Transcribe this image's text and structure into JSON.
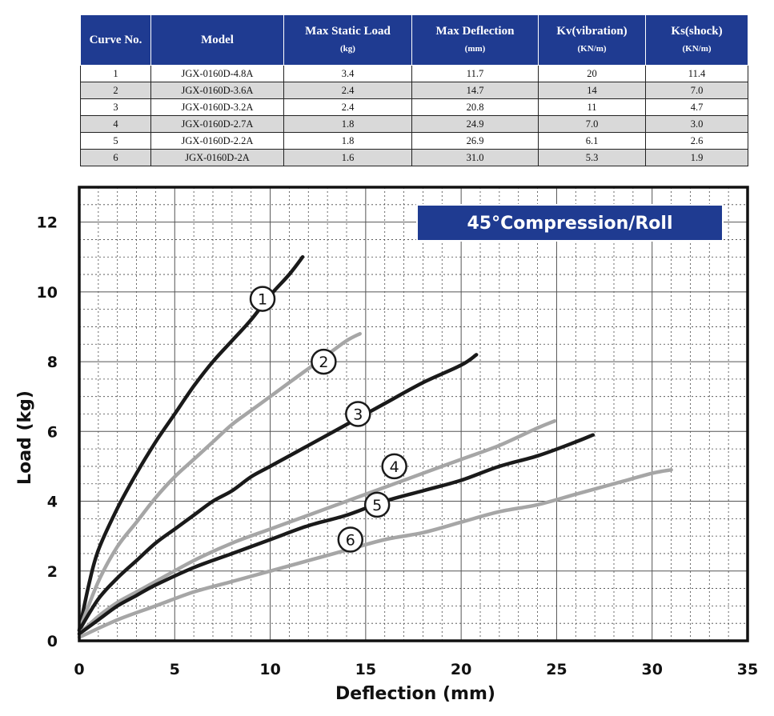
{
  "table": {
    "headers": [
      {
        "label": "Curve No.",
        "unit": ""
      },
      {
        "label": "Model",
        "unit": ""
      },
      {
        "label": "Max Static Load",
        "unit": "(kg)"
      },
      {
        "label": "Max Deflection",
        "unit": "(mm)"
      },
      {
        "label": "Kv(vibration)",
        "unit": "(KN/m)"
      },
      {
        "label": "Ks(shock)",
        "unit": "(KN/m)"
      }
    ],
    "rows": [
      [
        "1",
        "JGX-0160D-4.8A",
        "3.4",
        "11.7",
        "20",
        "11.4"
      ],
      [
        "2",
        "JGX-0160D-3.6A",
        "2.4",
        "14.7",
        "14",
        "7.0"
      ],
      [
        "3",
        "JGX-0160D-3.2A",
        "2.4",
        "20.8",
        "11",
        "4.7"
      ],
      [
        "4",
        "JGX-0160D-2.7A",
        "1.8",
        "24.9",
        "7.0",
        "3.0"
      ],
      [
        "5",
        "JGX-0160D-2.2A",
        "1.8",
        "26.9",
        "6.1",
        "2.6"
      ],
      [
        "6",
        "JGX-0160D-2A",
        "1.6",
        "31.0",
        "5.3",
        "1.9"
      ]
    ]
  },
  "chart_data": {
    "type": "line",
    "title": "45°Compression/Roll",
    "xlabel": "Deflection (mm)",
    "ylabel": "Load (kg)",
    "xlim": [
      0,
      35
    ],
    "ylim": [
      0,
      13
    ],
    "xticks": [
      0,
      5,
      10,
      15,
      20,
      25,
      30,
      35
    ],
    "yticks": [
      0,
      2,
      4,
      6,
      8,
      10,
      12
    ],
    "grid": "dashed minor grid with solid major lines",
    "series": [
      {
        "name": "1",
        "color": "#1a1a1a",
        "x": [
          0,
          0.5,
          1,
          2,
          3,
          4,
          5,
          6,
          7,
          8,
          9,
          10,
          11,
          11.7
        ],
        "y": [
          0.3,
          1.6,
          2.6,
          3.8,
          4.8,
          5.7,
          6.5,
          7.3,
          8.0,
          8.6,
          9.2,
          9.9,
          10.5,
          11.0
        ]
      },
      {
        "name": "2",
        "color": "#a6a6a6",
        "x": [
          0,
          1,
          2,
          3,
          4,
          5,
          6,
          7,
          8,
          9,
          10,
          11,
          12,
          13,
          14,
          14.7
        ],
        "y": [
          0.3,
          1.7,
          2.7,
          3.4,
          4.1,
          4.7,
          5.2,
          5.7,
          6.2,
          6.6,
          7.0,
          7.4,
          7.8,
          8.2,
          8.6,
          8.8
        ]
      },
      {
        "name": "3",
        "color": "#1a1a1a",
        "x": [
          0,
          1,
          2,
          3,
          4,
          5,
          6,
          7,
          8,
          9,
          10,
          12,
          14,
          16,
          18,
          20,
          20.8
        ],
        "y": [
          0.3,
          1.2,
          1.8,
          2.3,
          2.8,
          3.2,
          3.6,
          4.0,
          4.3,
          4.7,
          5.0,
          5.6,
          6.2,
          6.8,
          7.4,
          7.9,
          8.2
        ]
      },
      {
        "name": "4",
        "color": "#a6a6a6",
        "x": [
          0,
          1,
          2,
          3,
          4,
          6,
          8,
          10,
          12,
          14,
          16,
          18,
          20,
          22,
          24,
          24.9
        ],
        "y": [
          0.2,
          0.7,
          1.1,
          1.4,
          1.7,
          2.3,
          2.8,
          3.2,
          3.6,
          4.0,
          4.4,
          4.8,
          5.2,
          5.6,
          6.1,
          6.3
        ]
      },
      {
        "name": "5",
        "color": "#1a1a1a",
        "x": [
          0,
          1,
          2,
          3,
          4,
          6,
          8,
          10,
          12,
          14,
          16,
          18,
          20,
          22,
          24,
          26,
          26.9
        ],
        "y": [
          0.2,
          0.6,
          1.0,
          1.3,
          1.6,
          2.1,
          2.5,
          2.9,
          3.3,
          3.6,
          4.0,
          4.3,
          4.6,
          5.0,
          5.3,
          5.7,
          5.9
        ]
      },
      {
        "name": "6",
        "color": "#a6a6a6",
        "x": [
          0,
          2,
          4,
          6,
          8,
          10,
          12,
          14,
          16,
          18,
          20,
          22,
          24,
          26,
          28,
          30,
          31
        ],
        "y": [
          0.1,
          0.6,
          1.0,
          1.4,
          1.7,
          2.0,
          2.3,
          2.6,
          2.9,
          3.1,
          3.4,
          3.7,
          3.9,
          4.2,
          4.5,
          4.8,
          4.9
        ]
      }
    ],
    "curve_labels": [
      {
        "text": "1",
        "x": 9.6,
        "y": 9.8
      },
      {
        "text": "2",
        "x": 12.8,
        "y": 8.0
      },
      {
        "text": "3",
        "x": 14.6,
        "y": 6.5
      },
      {
        "text": "4",
        "x": 16.5,
        "y": 5.0
      },
      {
        "text": "5",
        "x": 15.6,
        "y": 3.9
      },
      {
        "text": "6",
        "x": 14.2,
        "y": 2.9
      }
    ],
    "title_box_color": "#1f3b91"
  }
}
